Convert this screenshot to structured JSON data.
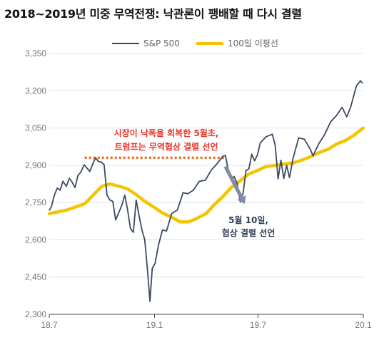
{
  "chart_data": {
    "type": "line",
    "title": "2018~2019년 미중 무역전쟁: 낙관론이 팽배할 때 다시 결렬",
    "xlabel": "",
    "ylabel": "",
    "x_ticks": [
      "18.7",
      "19.1",
      "19.7",
      "20.1"
    ],
    "y_ticks": [
      "2,300",
      "2,450",
      "2,600",
      "2,750",
      "2,900",
      "3,050",
      "3,200",
      "3,350"
    ],
    "xlim": [
      "2018-07-01",
      "2020-01-01"
    ],
    "ylim": [
      2300,
      3350
    ],
    "grid": "horizontal",
    "legend_position": "top",
    "series": [
      {
        "name": "S&P 500",
        "color": "#3b4a63",
        "x": [
          "2018-07-01",
          "2018-07-05",
          "2018-07-10",
          "2018-07-15",
          "2018-07-20",
          "2018-07-25",
          "2018-07-31",
          "2018-08-05",
          "2018-08-10",
          "2018-08-15",
          "2018-08-20",
          "2018-08-25",
          "2018-08-31",
          "2018-09-05",
          "2018-09-10",
          "2018-09-15",
          "2018-09-20",
          "2018-09-25",
          "2018-09-30",
          "2018-10-05",
          "2018-10-10",
          "2018-10-15",
          "2018-10-20",
          "2018-10-25",
          "2018-10-31",
          "2018-11-05",
          "2018-11-10",
          "2018-11-15",
          "2018-11-20",
          "2018-11-25",
          "2018-11-30",
          "2018-12-05",
          "2018-12-10",
          "2018-12-15",
          "2018-12-20",
          "2018-12-24",
          "2018-12-28",
          "2019-01-02",
          "2019-01-08",
          "2019-01-15",
          "2019-01-22",
          "2019-01-31",
          "2019-02-10",
          "2019-02-20",
          "2019-02-28",
          "2019-03-10",
          "2019-03-20",
          "2019-03-31",
          "2019-04-10",
          "2019-04-20",
          "2019-04-30",
          "2019-05-05",
          "2019-05-10",
          "2019-05-15",
          "2019-05-20",
          "2019-05-25",
          "2019-05-31",
          "2019-06-05",
          "2019-06-10",
          "2019-06-15",
          "2019-06-20",
          "2019-06-25",
          "2019-06-30",
          "2019-07-05",
          "2019-07-15",
          "2019-07-26",
          "2019-07-31",
          "2019-08-05",
          "2019-08-10",
          "2019-08-15",
          "2019-08-20",
          "2019-08-25",
          "2019-08-31",
          "2019-09-10",
          "2019-09-20",
          "2019-09-30",
          "2019-10-05",
          "2019-10-15",
          "2019-10-25",
          "2019-11-05",
          "2019-11-15",
          "2019-11-25",
          "2019-12-03",
          "2019-12-10",
          "2019-12-20",
          "2019-12-27",
          "2019-12-31"
        ],
        "values": [
          2718,
          2735,
          2780,
          2808,
          2800,
          2836,
          2815,
          2848,
          2832,
          2810,
          2858,
          2872,
          2902,
          2888,
          2875,
          2905,
          2930,
          2915,
          2913,
          2902,
          2780,
          2760,
          2755,
          2680,
          2712,
          2740,
          2780,
          2720,
          2645,
          2630,
          2760,
          2698,
          2640,
          2600,
          2470,
          2352,
          2485,
          2505,
          2580,
          2640,
          2635,
          2705,
          2720,
          2790,
          2785,
          2800,
          2835,
          2840,
          2880,
          2905,
          2935,
          2940,
          2880,
          2840,
          2855,
          2830,
          2752,
          2790,
          2880,
          2885,
          2945,
          2918,
          2942,
          2990,
          3015,
          3025,
          2980,
          2845,
          2920,
          2847,
          2900,
          2850,
          2926,
          3010,
          3005,
          2966,
          2938,
          2986,
          3022,
          3075,
          3100,
          3133,
          3095,
          3135,
          3220,
          3240,
          3230
        ]
      },
      {
        "name": "100일 이평선",
        "color": "#f5c400",
        "x": [
          "2018-07-01",
          "2018-08-01",
          "2018-09-01",
          "2018-09-20",
          "2018-10-01",
          "2018-10-15",
          "2018-11-01",
          "2018-11-15",
          "2018-12-01",
          "2018-12-15",
          "2019-01-01",
          "2019-01-15",
          "2019-02-01",
          "2019-02-15",
          "2019-03-01",
          "2019-03-15",
          "2019-04-01",
          "2019-04-15",
          "2019-05-01",
          "2019-05-15",
          "2019-06-01",
          "2019-06-15",
          "2019-07-01",
          "2019-07-15",
          "2019-08-01",
          "2019-08-15",
          "2019-09-01",
          "2019-09-15",
          "2019-10-01",
          "2019-10-15",
          "2019-11-01",
          "2019-11-15",
          "2019-12-01",
          "2019-12-15",
          "2020-01-01"
        ],
        "values": [
          2705,
          2720,
          2745,
          2790,
          2815,
          2825,
          2815,
          2805,
          2780,
          2755,
          2730,
          2708,
          2690,
          2672,
          2672,
          2685,
          2705,
          2740,
          2775,
          2810,
          2840,
          2865,
          2880,
          2895,
          2900,
          2905,
          2910,
          2920,
          2935,
          2950,
          2965,
          2985,
          3000,
          3020,
          3050
        ]
      }
    ],
    "annotations": [
      {
        "lines": [
          "시장이 낙폭을 회복한 5월초,",
          "트럼프는 무역협상 결렬 선언"
        ],
        "color": "#e8352a"
      },
      {
        "lines": [
          "5월 10일,",
          "협상 결렬 선언"
        ],
        "color": "#2f3e55"
      }
    ],
    "reference_line": {
      "value": 2930,
      "style": "dotted",
      "color": "#e8732a"
    },
    "arrow_color": "#7f8ca3"
  }
}
